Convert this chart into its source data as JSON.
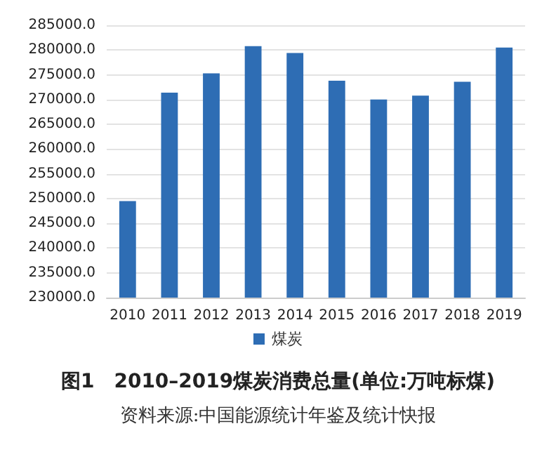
{
  "chart_data": {
    "type": "bar",
    "title": "图1　2010–2019煤炭消费总量(单位:万吨标煤)",
    "annotations": [
      "资料来源:中国能源统计年鉴及统计快报"
    ],
    "categories": [
      "2010",
      "2011",
      "2012",
      "2013",
      "2014",
      "2015",
      "2016",
      "2017",
      "2018",
      "2019"
    ],
    "series": [
      {
        "name": "煤炭",
        "color": "#2e6db4",
        "values": [
          249500,
          271400,
          275300,
          280800,
          279400,
          273800,
          270000,
          270800,
          273600,
          280500
        ]
      }
    ],
    "ylim": [
      230000,
      285000
    ],
    "yticks": [
      {
        "value": 230000,
        "label": "230000.0"
      },
      {
        "value": 235000,
        "label": "235000.0"
      },
      {
        "value": 240000,
        "label": "240000.0"
      },
      {
        "value": 245000,
        "label": "245000.0"
      },
      {
        "value": 250000,
        "label": "250000.0"
      },
      {
        "value": 255000,
        "label": "255000.0"
      },
      {
        "value": 260000,
        "label": "260000.0"
      },
      {
        "value": 265000,
        "label": "265000.0"
      },
      {
        "value": 270000,
        "label": "270000.0"
      },
      {
        "value": 275000,
        "label": "275000.0"
      },
      {
        "value": 280000,
        "label": "280000.0"
      },
      {
        "value": 285000,
        "label": "285000.0"
      }
    ],
    "grid": "y",
    "legend": "bottom"
  }
}
